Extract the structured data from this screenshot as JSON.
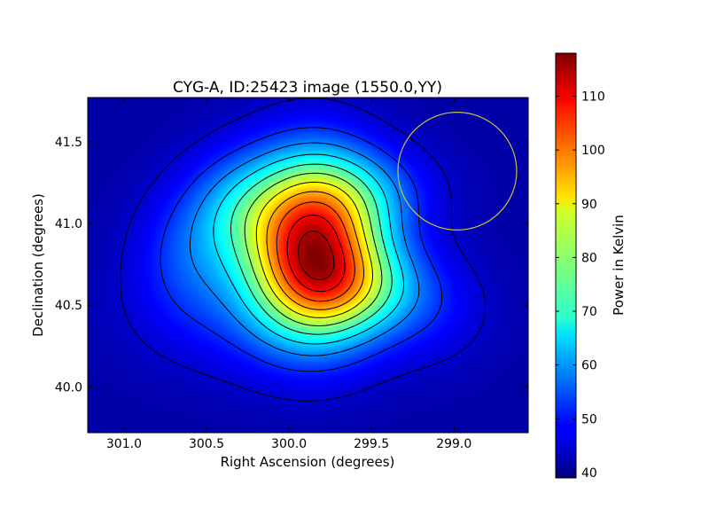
{
  "chart_data": {
    "type": "heatmap",
    "title": "CYG-A, ID:25423 image (1550.0,YY)",
    "xlabel": "Right Ascension (degrees)",
    "ylabel": "Declination (degrees)",
    "xlim": [
      301.22,
      298.55
    ],
    "ylim": [
      39.72,
      41.77
    ],
    "x_ticks": [
      {
        "value": 301.0,
        "label": "301.0"
      },
      {
        "value": 300.5,
        "label": "300.5"
      },
      {
        "value": 300.0,
        "label": "300.0"
      },
      {
        "value": 299.5,
        "label": "299.5"
      },
      {
        "value": 299.0,
        "label": "299.0"
      }
    ],
    "y_ticks": [
      {
        "value": 40.0,
        "label": "40.0"
      },
      {
        "value": 40.5,
        "label": "40.5"
      },
      {
        "value": 41.0,
        "label": "41.0"
      },
      {
        "value": 41.5,
        "label": "41.5"
      }
    ],
    "colorbar": {
      "label": "Power in Kelvin",
      "colormap": "jet",
      "vmin": 39,
      "vmax": 118,
      "ticks": [
        {
          "value": 40,
          "label": "40"
        },
        {
          "value": 50,
          "label": "50"
        },
        {
          "value": 60,
          "label": "60"
        },
        {
          "value": 70,
          "label": "70"
        },
        {
          "value": 80,
          "label": "80"
        },
        {
          "value": 90,
          "label": "90"
        },
        {
          "value": 100,
          "label": "100"
        },
        {
          "value": 110,
          "label": "110"
        }
      ]
    },
    "peak": {
      "ra": 299.86,
      "dec": 40.87,
      "value": 117
    },
    "background_level": 42,
    "contour_levels": [
      45,
      52,
      59,
      66,
      73,
      80,
      87,
      94,
      101,
      108,
      114
    ],
    "contour_color": "#000000",
    "beam_circle": {
      "ra_center": 298.98,
      "dec_center": 41.32,
      "radius_deg": 0.36,
      "color": "#c8c040"
    },
    "grid": false
  }
}
